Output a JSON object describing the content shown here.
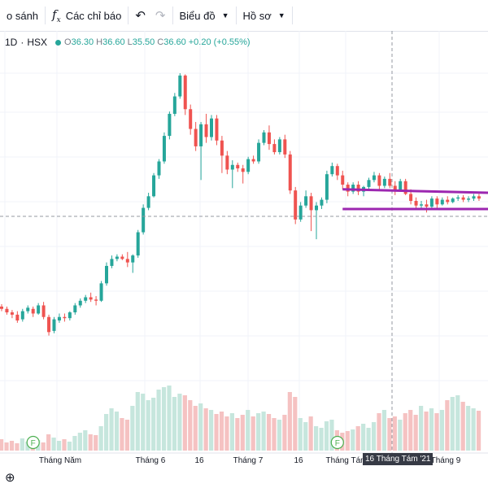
{
  "toolbar": {
    "compare_label": "o sánh",
    "indicators_label": "Các chỉ báo",
    "chart_type_label": "Biểu đồ",
    "profile_label": "Hồ sơ"
  },
  "legend": {
    "interval": "1D",
    "exchange": "HSX",
    "o_label": "O",
    "o_value": "36.30",
    "h_label": "H",
    "h_value": "36.60",
    "l_label": "L",
    "l_value": "35.50",
    "c_label": "C",
    "c_value": "36.60",
    "change": "+0.20 (+0.55%)"
  },
  "crosshair_date": "16 Tháng Tám '21",
  "chart_data": {
    "type": "candlestick",
    "x_ticks": [
      "Tháng Năm",
      "Tháng 6",
      "16",
      "Tháng 7",
      "16",
      "Tháng Tám",
      "Tháng 9"
    ],
    "y_range": [
      20.5,
      44.6
    ],
    "colors": {
      "up": "#26a69a",
      "down": "#ef5350",
      "volume_up": "#c6e6dd",
      "volume_down": "#f5c2c2",
      "channel": "#9c27b0"
    },
    "event_markers": [
      {
        "label": "F",
        "date": "2021-05-04"
      },
      {
        "label": "F",
        "date": "2021-07-23"
      }
    ],
    "channel_lines": [
      {
        "from": {
          "date": "2021-07-26",
          "price": 34.6
        },
        "to": {
          "date": "2021-09-13",
          "price": 34.3
        }
      },
      {
        "from": {
          "date": "2021-07-26",
          "price": 32.9
        },
        "to": {
          "date": "2021-09-13",
          "price": 32.9
        }
      }
    ],
    "ohlc": [
      [
        24.5,
        24.7,
        24.1,
        24.3
      ],
      [
        24.3,
        24.5,
        23.8,
        24.0
      ],
      [
        24.0,
        24.2,
        23.5,
        23.8
      ],
      [
        23.8,
        24.1,
        23.1,
        23.3
      ],
      [
        23.4,
        24.3,
        23.2,
        24.1
      ],
      [
        24.1,
        24.6,
        23.9,
        24.4
      ],
      [
        24.3,
        24.5,
        23.6,
        23.9
      ],
      [
        23.9,
        24.8,
        23.8,
        24.6
      ],
      [
        24.6,
        24.9,
        23.4,
        23.6
      ],
      [
        23.6,
        23.8,
        22.0,
        22.3
      ],
      [
        22.4,
        23.6,
        22.2,
        23.4
      ],
      [
        23.3,
        23.9,
        23.1,
        23.6
      ],
      [
        23.6,
        23.9,
        23.2,
        23.5
      ],
      [
        23.5,
        24.1,
        23.3,
        24.0
      ],
      [
        24.0,
        24.8,
        23.8,
        24.6
      ],
      [
        24.6,
        25.2,
        24.4,
        25.0
      ],
      [
        25.0,
        25.5,
        24.8,
        25.3
      ],
      [
        25.3,
        25.7,
        24.9,
        25.1
      ],
      [
        25.1,
        25.4,
        24.6,
        25.0
      ],
      [
        25.0,
        26.7,
        24.9,
        26.5
      ],
      [
        26.5,
        28.3,
        26.3,
        28.0
      ],
      [
        28.0,
        28.9,
        27.8,
        28.6
      ],
      [
        28.6,
        29.0,
        28.4,
        28.8
      ],
      [
        28.8,
        29.0,
        28.5,
        28.6
      ],
      [
        28.6,
        29.2,
        27.9,
        28.3
      ],
      [
        28.3,
        29.0,
        27.4,
        28.9
      ],
      [
        28.9,
        31.1,
        28.7,
        30.9
      ],
      [
        30.9,
        33.3,
        30.7,
        33.0
      ],
      [
        33.0,
        34.3,
        32.8,
        34.0
      ],
      [
        34.0,
        36.0,
        33.9,
        35.8
      ],
      [
        35.8,
        37.2,
        35.5,
        37.0
      ],
      [
        37.0,
        39.5,
        36.8,
        39.2
      ],
      [
        39.2,
        41.3,
        38.9,
        41.1
      ],
      [
        41.1,
        42.9,
        40.9,
        42.6
      ],
      [
        42.6,
        44.6,
        42.4,
        44.4
      ],
      [
        44.4,
        44.5,
        41.0,
        41.5
      ],
      [
        41.5,
        41.9,
        39.3,
        39.8
      ],
      [
        39.8,
        40.4,
        37.9,
        38.3
      ],
      [
        38.3,
        40.4,
        35.4,
        40.2
      ],
      [
        40.2,
        41.1,
        38.6,
        39.1
      ],
      [
        39.1,
        41.0,
        38.8,
        40.7
      ],
      [
        40.7,
        41.0,
        38.4,
        38.8
      ],
      [
        38.8,
        39.2,
        36.0,
        37.5
      ],
      [
        37.5,
        37.9,
        35.9,
        36.3
      ],
      [
        36.3,
        37.1,
        34.7,
        36.7
      ],
      [
        36.7,
        36.9,
        36.1,
        36.4
      ],
      [
        36.4,
        36.7,
        35.1,
        36.1
      ],
      [
        36.1,
        37.4,
        35.9,
        37.2
      ],
      [
        37.2,
        37.5,
        36.8,
        37.0
      ],
      [
        37.0,
        38.9,
        36.8,
        38.6
      ],
      [
        38.6,
        39.7,
        38.4,
        39.5
      ],
      [
        39.5,
        40.1,
        38.0,
        38.5
      ],
      [
        38.5,
        38.9,
        37.6,
        37.8
      ],
      [
        37.8,
        39.1,
        37.6,
        38.9
      ],
      [
        38.9,
        39.3,
        37.3,
        37.6
      ],
      [
        37.6,
        37.9,
        34.2,
        34.5
      ],
      [
        34.5,
        34.8,
        31.6,
        32.0
      ],
      [
        32.0,
        33.5,
        31.8,
        33.2
      ],
      [
        33.2,
        34.5,
        33.0,
        34.0
      ],
      [
        34.0,
        34.3,
        31.0,
        32.8
      ],
      [
        32.8,
        33.5,
        30.3,
        33.2
      ],
      [
        33.2,
        33.9,
        32.9,
        33.7
      ],
      [
        33.7,
        36.2,
        33.4,
        35.9
      ],
      [
        35.9,
        36.9,
        35.7,
        36.6
      ],
      [
        36.6,
        36.8,
        35.4,
        35.8
      ],
      [
        35.8,
        36.2,
        34.6,
        35.0
      ],
      [
        35.0,
        35.2,
        34.0,
        34.4
      ],
      [
        34.4,
        35.2,
        34.2,
        35.0
      ],
      [
        35.0,
        35.3,
        34.1,
        34.4
      ],
      [
        34.4,
        34.9,
        34.0,
        34.8
      ],
      [
        34.8,
        35.6,
        34.6,
        35.4
      ],
      [
        35.4,
        36.1,
        35.2,
        35.8
      ],
      [
        35.8,
        36.0,
        34.6,
        34.9
      ],
      [
        34.9,
        35.7,
        34.7,
        35.5
      ],
      [
        35.5,
        36.0,
        34.7,
        34.9
      ],
      [
        34.9,
        35.3,
        34.1,
        34.5
      ],
      [
        34.5,
        35.5,
        34.4,
        35.3
      ],
      [
        35.3,
        35.5,
        34.1,
        34.2
      ],
      [
        34.2,
        34.6,
        33.3,
        33.6
      ],
      [
        33.6,
        33.9,
        33.0,
        33.2
      ],
      [
        33.2,
        33.6,
        32.9,
        33.3
      ],
      [
        33.3,
        33.7,
        32.6,
        33.1
      ],
      [
        33.1,
        34.0,
        32.9,
        33.8
      ],
      [
        33.8,
        34.0,
        33.0,
        33.3
      ],
      [
        33.3,
        33.9,
        33.2,
        33.7
      ],
      [
        33.7,
        34.0,
        33.3,
        33.5
      ],
      [
        33.5,
        33.9,
        33.4,
        33.8
      ],
      [
        33.8,
        34.1,
        33.6,
        33.9
      ],
      [
        33.9,
        34.1,
        33.5,
        33.7
      ],
      [
        33.7,
        34.0,
        33.5,
        33.8
      ],
      [
        33.8,
        34.2,
        33.6,
        34.0
      ],
      [
        34.0,
        34.2,
        33.6,
        33.8
      ]
    ],
    "volume": [
      0.14,
      0.1,
      0.12,
      0.09,
      0.15,
      0.11,
      0.08,
      0.13,
      0.1,
      0.2,
      0.16,
      0.12,
      0.14,
      0.11,
      0.18,
      0.22,
      0.25,
      0.2,
      0.19,
      0.3,
      0.45,
      0.52,
      0.48,
      0.4,
      0.38,
      0.55,
      0.72,
      0.7,
      0.62,
      0.65,
      0.75,
      0.78,
      0.8,
      0.66,
      0.7,
      0.68,
      0.62,
      0.55,
      0.58,
      0.52,
      0.5,
      0.45,
      0.48,
      0.42,
      0.46,
      0.4,
      0.44,
      0.5,
      0.42,
      0.46,
      0.48,
      0.45,
      0.4,
      0.38,
      0.44,
      0.72,
      0.66,
      0.4,
      0.35,
      0.42,
      0.3,
      0.28,
      0.36,
      0.38,
      0.25,
      0.22,
      0.24,
      0.26,
      0.3,
      0.33,
      0.28,
      0.35,
      0.46,
      0.5,
      0.4,
      0.42,
      0.38,
      0.46,
      0.5,
      0.44,
      0.55,
      0.48,
      0.52,
      0.46,
      0.5,
      0.62,
      0.66,
      0.68,
      0.6,
      0.55,
      0.52,
      0.49
    ]
  }
}
